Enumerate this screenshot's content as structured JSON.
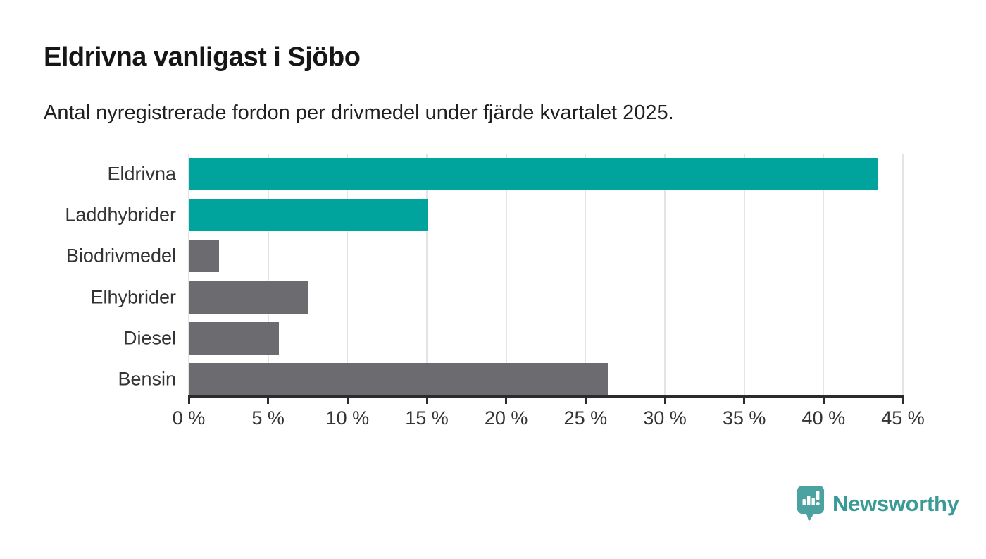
{
  "header": {
    "title": "Eldrivna vanligast i Sjöbo",
    "subtitle": "Antal nyregistrerade fordon per drivmedel under fjärde kvartalet 2025."
  },
  "chart_data": {
    "type": "bar",
    "orientation": "horizontal",
    "title": "Eldrivna vanligast i Sjöbo",
    "subtitle": "Antal nyregistrerade fordon per drivmedel under fjärde kvartalet 2025.",
    "categories": [
      "Eldrivna",
      "Laddhybrider",
      "Biodrivmedel",
      "Elhybrider",
      "Diesel",
      "Bensin"
    ],
    "values": [
      43.4,
      15.1,
      1.9,
      7.5,
      5.7,
      26.4
    ],
    "unit": "%",
    "bar_colors": [
      "#00a49c",
      "#00a49c",
      "#6c6b70",
      "#6c6b70",
      "#6c6b70",
      "#6c6b70"
    ],
    "highlight_color": "#00a49c",
    "default_color": "#6c6b70",
    "xlabel": "",
    "ylabel": "",
    "xlim": [
      0,
      45
    ],
    "x_ticks": [
      0,
      5,
      10,
      15,
      20,
      25,
      30,
      35,
      40,
      45
    ],
    "x_tick_labels": [
      "0 %",
      "5 %",
      "10 %",
      "15 %",
      "20 %",
      "25 %",
      "30 %",
      "35 %",
      "40 %",
      "45 %"
    ],
    "grid": "vertical",
    "gridline_color": "#e4e4e4",
    "axis_color": "#2b2b2b",
    "legend": "none"
  },
  "footer": {
    "brand": "Newsworthy",
    "brand_color": "#399a96",
    "badge_color": "#4ba2a0",
    "logo_icon": "chart-bars-exclamation-badge"
  }
}
